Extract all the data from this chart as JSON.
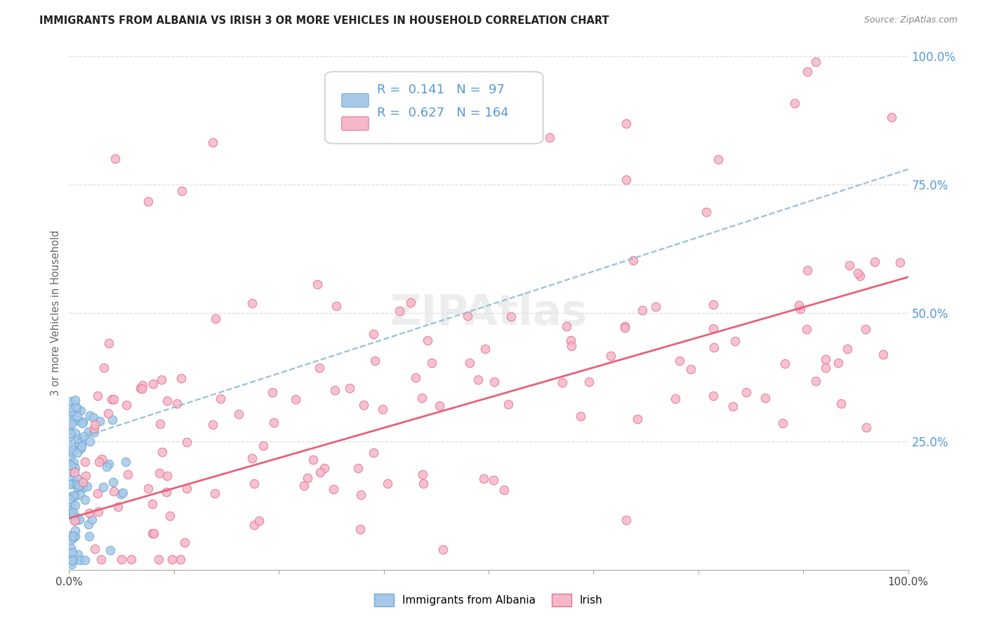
{
  "title": "IMMIGRANTS FROM ALBANIA VS IRISH 3 OR MORE VEHICLES IN HOUSEHOLD CORRELATION CHART",
  "source": "Source: ZipAtlas.com",
  "ylabel": "3 or more Vehicles in Household",
  "legend_albania_r": "0.141",
  "legend_albania_n": "97",
  "legend_irish_r": "0.627",
  "legend_irish_n": "164",
  "albania_color_face": "#a8c8e8",
  "albania_color_edge": "#6aaad4",
  "irish_color_face": "#f5b8c8",
  "irish_color_edge": "#e87090",
  "albania_trend_color": "#88bbd8",
  "irish_trend_color": "#e8607a",
  "tick_label_color": "#5599dd",
  "ylabel_color": "#666666",
  "watermark_color": "#dddddd",
  "grid_color": "#dddddd",
  "ytick_positions": [
    25,
    50,
    75,
    100
  ],
  "ytick_labels": [
    "25.0%",
    "50.0%",
    "75.0%",
    "100.0%"
  ],
  "xlim": [
    0,
    100
  ],
  "ylim": [
    0,
    100
  ],
  "albania_trend_start_y": 25.0,
  "albania_trend_end_y": 78.0,
  "irish_trend_start_y": 10.0,
  "irish_trend_end_y": 57.0
}
